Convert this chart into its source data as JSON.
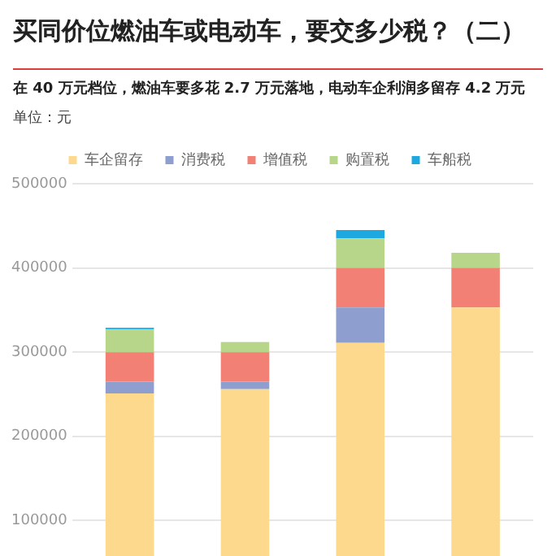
{
  "chart_data": {
    "type": "bar",
    "title": "买同价位燃油车或电动车，要交多少税？（二）",
    "subtitle": "在 40 万元档位，燃油车要多花 2.7 万元落地，电动车企利润多留存 4.2 万元",
    "annotations": [
      "单位：元"
    ],
    "categories": [
      null,
      null,
      null,
      null
    ],
    "stacked": true,
    "series": [
      {
        "name": "车企留存",
        "color": "#fcd98c",
        "values": [
          251000,
          256000,
          311000,
          353000
        ]
      },
      {
        "name": "消费税",
        "color": "#8e9fcf",
        "values": [
          14000,
          9000,
          42000,
          null
        ]
      },
      {
        "name": "增值税",
        "color": "#f28075",
        "values": [
          35000,
          35000,
          47000,
          47000
        ]
      },
      {
        "name": "购置税",
        "color": "#b7d68a",
        "values": [
          27000,
          12000,
          35000,
          18000
        ]
      },
      {
        "name": "车船税",
        "color": "#1ea8e0",
        "values": [
          2000,
          null,
          10000,
          null
        ]
      }
    ],
    "ylim": [
      0,
      500000
    ],
    "yticks": [
      100000,
      200000,
      300000,
      400000,
      500000
    ],
    "grid": "y",
    "legend": "top",
    "tick_labels": "y"
  }
}
